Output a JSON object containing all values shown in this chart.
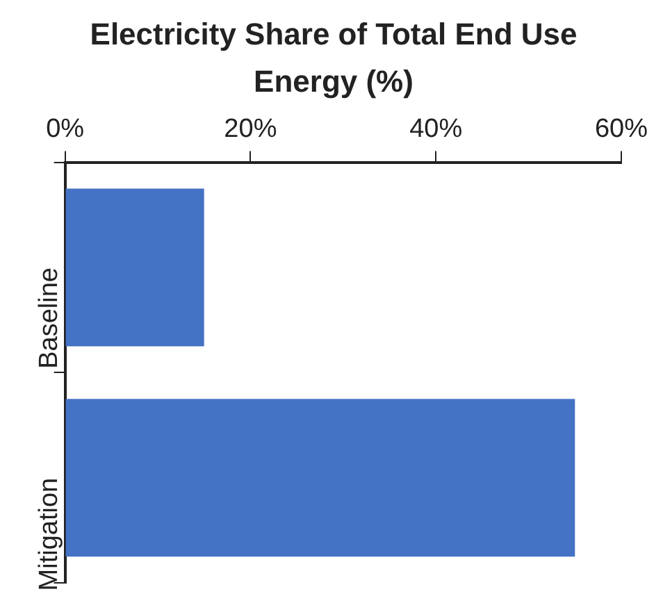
{
  "chart_data": {
    "type": "bar",
    "title": "Electricity Share of Total End Use Energy (%)",
    "orientation": "horizontal",
    "categories": [
      "Baseline",
      "Mitigation"
    ],
    "values": [
      15,
      55
    ],
    "color": "#4472c4",
    "xlim": [
      0,
      60
    ],
    "xticks": [
      {
        "value": 0,
        "label": "0%"
      },
      {
        "value": 20,
        "label": "20%"
      },
      {
        "value": 40,
        "label": "40%"
      },
      {
        "value": 60,
        "label": "60%"
      }
    ],
    "grid": false,
    "legend": false
  }
}
